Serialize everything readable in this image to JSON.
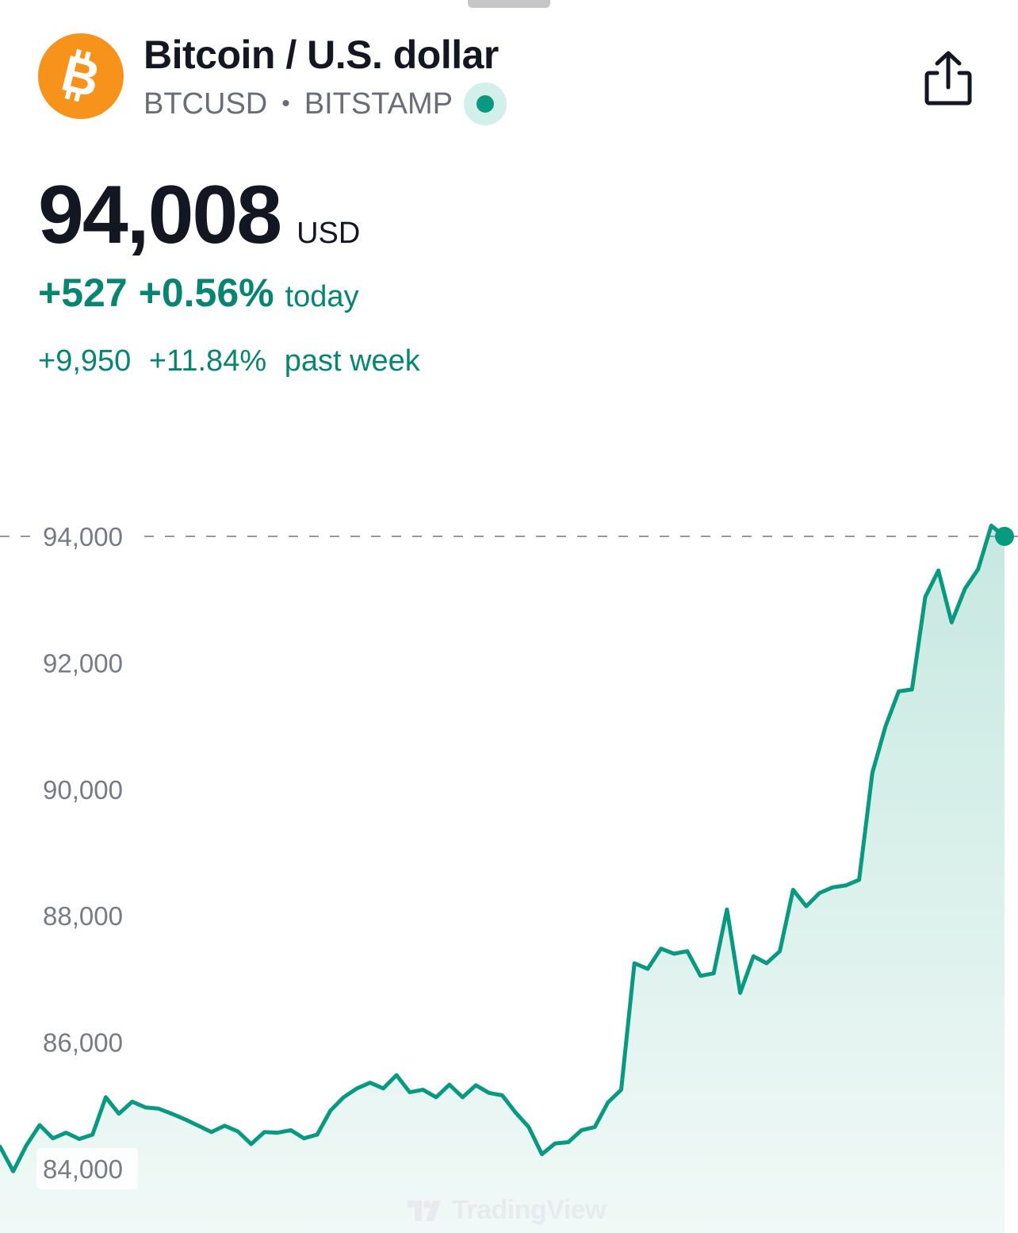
{
  "header": {
    "title": "Bitcoin / U.S. dollar",
    "symbol": "BTCUSD",
    "separator": "•",
    "exchange": "BITSTAMP",
    "market_status_color": "#089981",
    "logo_icon": "bitcoin-icon",
    "logo_color": "#f7931a",
    "share_icon": "share-icon"
  },
  "quote": {
    "price": "94,008",
    "currency": "USD",
    "today_change": "+527",
    "today_change_percent": "+0.56%",
    "today_label": "today",
    "week_change": "+9,950",
    "week_change_percent": "+11.84%",
    "week_label": "past week",
    "positive_color": "#088571"
  },
  "watermark": {
    "text": "TradingView"
  },
  "chart_data": {
    "type": "area",
    "title": "",
    "xlabel": "",
    "ylabel": "",
    "ylim": [
      83000,
      95000
    ],
    "yticks": [
      84000,
      86000,
      88000,
      90000,
      92000,
      94000
    ],
    "ytick_labels": [
      "84,000",
      "86,000",
      "88,000",
      "90,000",
      "92,000",
      "94,000"
    ],
    "current_price_line": 94000,
    "line_color": "#089981",
    "fill_color_top": "#c6e8e0",
    "fill_color_bottom": "#f1f9f7",
    "grid": false,
    "legend": "none",
    "series": [
      {
        "values": [
          84350,
          83960,
          84370,
          84690,
          84480,
          84570,
          84470,
          84540,
          85130,
          84870,
          85060,
          84970,
          84950,
          84870,
          84780,
          84680,
          84580,
          84680,
          84590,
          84390,
          84580,
          84570,
          84610,
          84480,
          84540,
          84920,
          85130,
          85270,
          85360,
          85270,
          85480,
          85210,
          85250,
          85130,
          85330,
          85130,
          85320,
          85200,
          85160,
          84890,
          84660,
          84230,
          84400,
          84420,
          84610,
          84660,
          85050,
          85250,
          87250,
          87160,
          87480,
          87400,
          87440,
          87050,
          87090,
          88100,
          86780,
          87360,
          87250,
          87440,
          88410,
          88150,
          88360,
          88450,
          88480,
          88570,
          90260,
          91000,
          91550,
          91580,
          93040,
          93460,
          92640,
          93170,
          93480,
          94170,
          94000
        ]
      }
    ]
  }
}
